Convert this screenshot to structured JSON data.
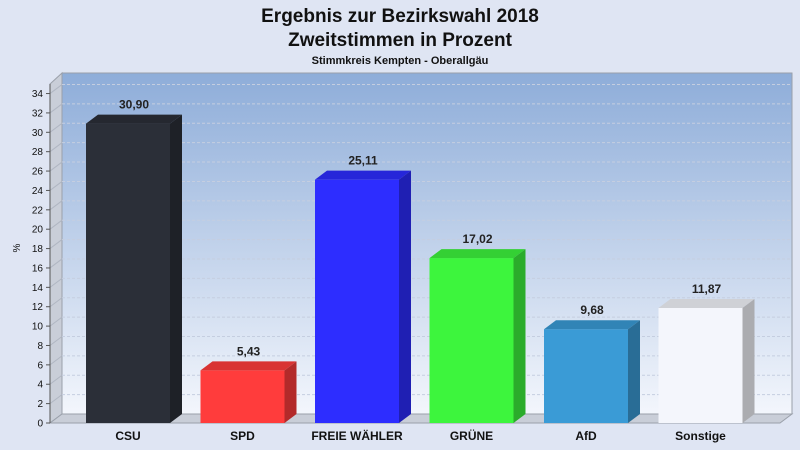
{
  "chart_data": {
    "type": "bar",
    "title": "Ergebnis zur Bezirkswahl 2018",
    "title2": "Zweitstimmen in Prozent",
    "subtitle": "Stimmkreis Kempten - Oberallgäu",
    "ylabel": "%",
    "xlabel": "",
    "ylim": [
      0,
      35
    ],
    "ytick_step": 2,
    "grid": true,
    "categories": [
      "CSU",
      "SPD",
      "FREIE WÄHLER",
      "GRÜNE",
      "AfD",
      "Sonstige"
    ],
    "values": [
      30.9,
      5.43,
      25.11,
      17.02,
      9.68,
      11.87
    ],
    "value_labels": [
      "30,90",
      "5,43",
      "25,11",
      "17,02",
      "9,68",
      "11,87"
    ],
    "colors": [
      "#2b2f38",
      "#ff3c3c",
      "#2d2dff",
      "#3df53d",
      "#3a9bd6",
      "#f4f6fc"
    ]
  }
}
